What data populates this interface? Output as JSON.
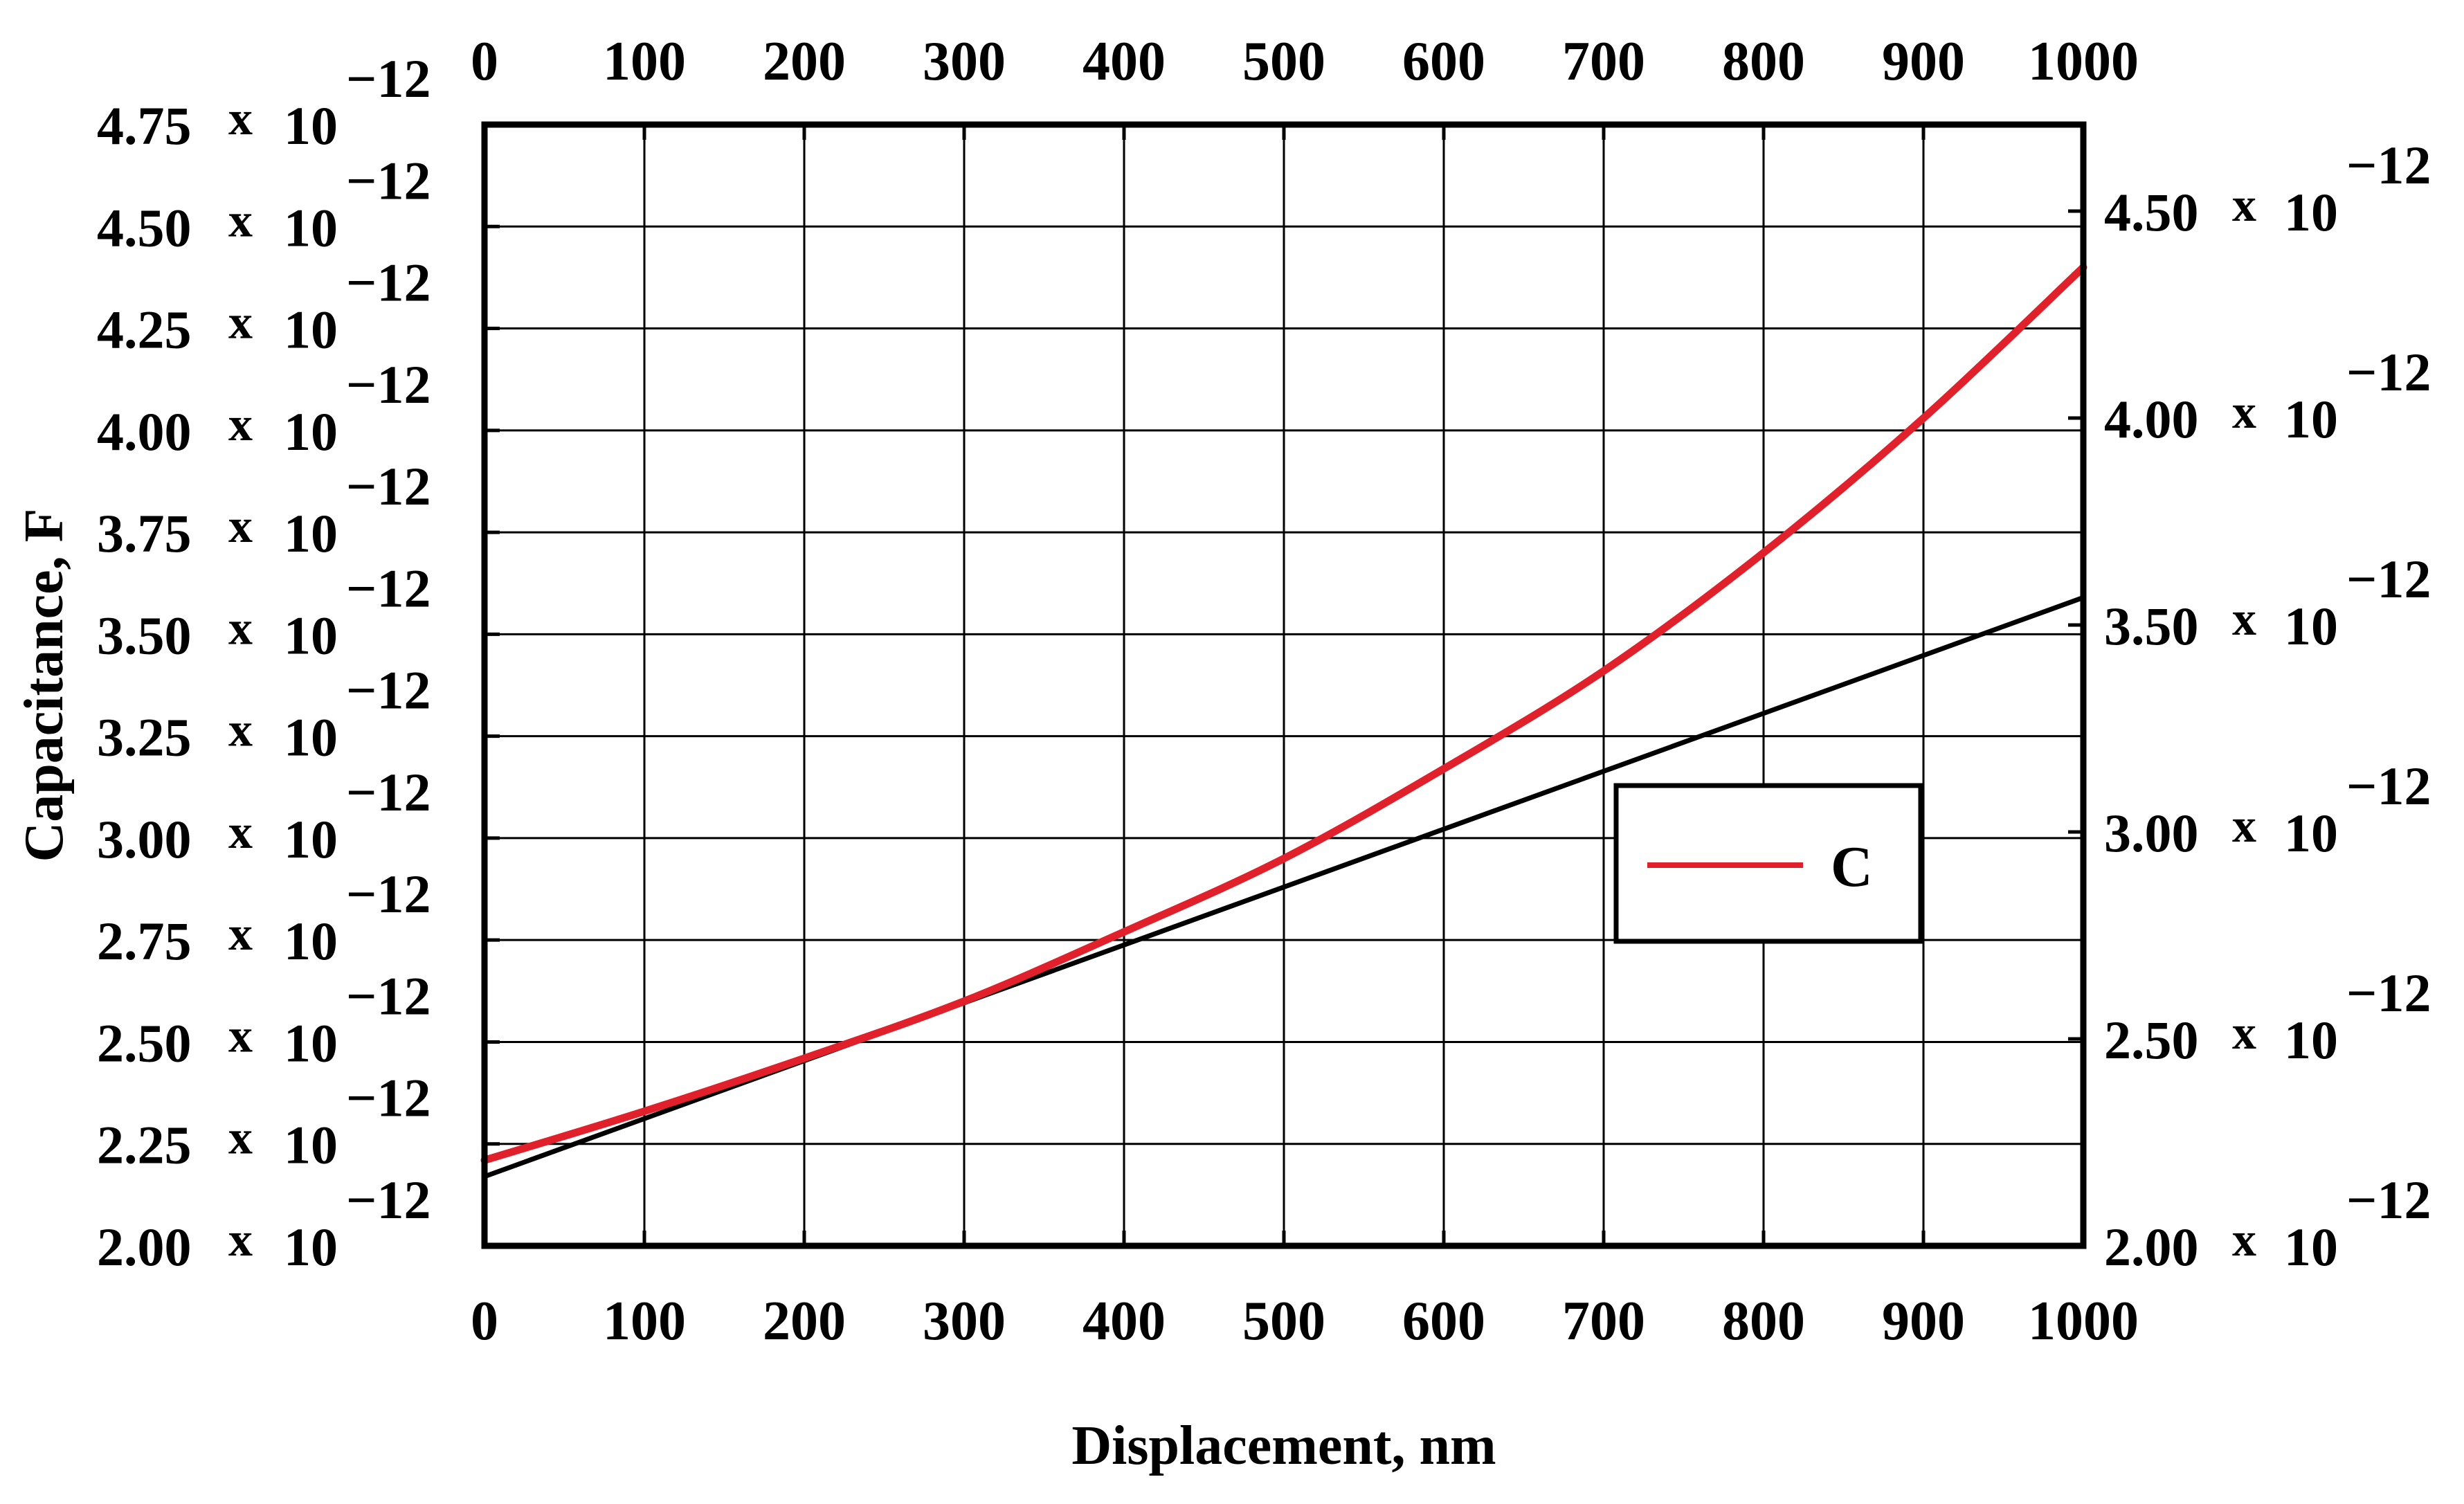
{
  "chart_data": {
    "type": "line",
    "xlabel": "Displacement, nm",
    "ylabel": "Capacitance, F",
    "xlim": [
      0,
      1000
    ],
    "ylim_left": [
      2e-12,
      4.75e-12
    ],
    "ylim_right": [
      2e-12,
      4.5e-12
    ],
    "grid": true,
    "legend_position": "center-right",
    "x_ticks": [
      "0",
      "100",
      "200",
      "300",
      "400",
      "500",
      "600",
      "700",
      "800",
      "900",
      "1000"
    ],
    "y_ticks_left": [
      {
        "value": 2.0,
        "mantissa": "2.00",
        "times": "x",
        "base": "10",
        "exp": "−12"
      },
      {
        "value": 2.25,
        "mantissa": "2.25",
        "times": "x",
        "base": "10",
        "exp": "−12"
      },
      {
        "value": 2.5,
        "mantissa": "2.50",
        "times": "x",
        "base": "10",
        "exp": "−12"
      },
      {
        "value": 2.75,
        "mantissa": "2.75",
        "times": "x",
        "base": "10",
        "exp": "−12"
      },
      {
        "value": 3.0,
        "mantissa": "3.00",
        "times": "x",
        "base": "10",
        "exp": "−12"
      },
      {
        "value": 3.25,
        "mantissa": "3.25",
        "times": "x",
        "base": "10",
        "exp": "−12"
      },
      {
        "value": 3.5,
        "mantissa": "3.50",
        "times": "x",
        "base": "10",
        "exp": "−12"
      },
      {
        "value": 3.75,
        "mantissa": "3.75",
        "times": "x",
        "base": "10",
        "exp": "−12"
      },
      {
        "value": 4.0,
        "mantissa": "4.00",
        "times": "x",
        "base": "10",
        "exp": "−12"
      },
      {
        "value": 4.25,
        "mantissa": "4.25",
        "times": "x",
        "base": "10",
        "exp": "−12"
      },
      {
        "value": 4.5,
        "mantissa": "4.50",
        "times": "x",
        "base": "10",
        "exp": "−12"
      },
      {
        "value": 4.75,
        "mantissa": "4.75",
        "times": "x",
        "base": "10",
        "exp": "−12"
      }
    ],
    "y_ticks_right": [
      {
        "value": 2.0,
        "mantissa": "2.00",
        "times": "x",
        "base": "10",
        "exp": "−12"
      },
      {
        "value": 2.5,
        "mantissa": "2.50",
        "times": "x",
        "base": "10",
        "exp": "−12"
      },
      {
        "value": 3.0,
        "mantissa": "3.00",
        "times": "x",
        "base": "10",
        "exp": "−12"
      },
      {
        "value": 3.5,
        "mantissa": "3.50",
        "times": "x",
        "base": "10",
        "exp": "−12"
      },
      {
        "value": 4.0,
        "mantissa": "4.00",
        "times": "x",
        "base": "10",
        "exp": "−12"
      },
      {
        "value": 4.5,
        "mantissa": "4.50",
        "times": "x",
        "base": "10",
        "exp": "−12"
      }
    ],
    "series": [
      {
        "name": "C",
        "color": "#e0202a",
        "axis": "left",
        "x": [
          0,
          100,
          200,
          300,
          400,
          500,
          600,
          700,
          800,
          900,
          1000
        ],
        "y": [
          2.21e-12,
          2.33e-12,
          2.46e-12,
          2.6e-12,
          2.77e-12,
          2.95e-12,
          3.17e-12,
          3.41e-12,
          3.7e-12,
          4.03e-12,
          4.4e-12
        ]
      },
      {
        "color": "#000000",
        "axis": "left",
        "x": [
          0,
          1000
        ],
        "y": [
          2.17e-12,
          3.59e-12
        ]
      }
    ]
  }
}
